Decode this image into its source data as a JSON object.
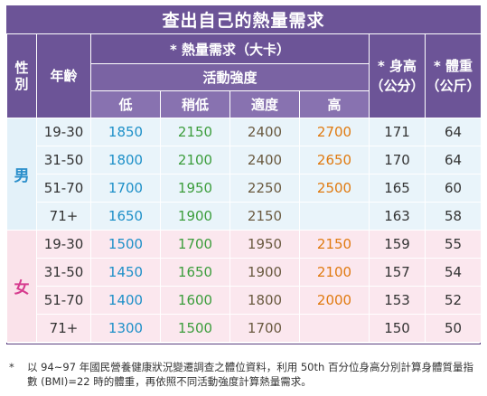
{
  "title": "查出自己的熱量需求",
  "headers": {
    "sex": "性別",
    "age": "年齡",
    "calorie": "* 熱量需求（大卡）",
    "activity": "活動強度",
    "height": "* 身高（公分）",
    "weight": "* 體重（公斤）",
    "levels": [
      "低",
      "稍低",
      "適度",
      "高"
    ]
  },
  "groups": [
    {
      "sex": "男",
      "rows": [
        {
          "age": "19-30",
          "low": "1850",
          "slightly_low": "2150",
          "moderate": "2400",
          "high": "2700",
          "height": "171",
          "weight": "64"
        },
        {
          "age": "31-50",
          "low": "1800",
          "slightly_low": "2100",
          "moderate": "2400",
          "high": "2650",
          "height": "170",
          "weight": "64"
        },
        {
          "age": "51-70",
          "low": "1700",
          "slightly_low": "1950",
          "moderate": "2250",
          "high": "2500",
          "height": "165",
          "weight": "60"
        },
        {
          "age": "71+",
          "low": "1650",
          "slightly_low": "1900",
          "moderate": "2150",
          "high": "",
          "height": "163",
          "weight": "58"
        }
      ]
    },
    {
      "sex": "女",
      "rows": [
        {
          "age": "19-30",
          "low": "1500",
          "slightly_low": "1700",
          "moderate": "1950",
          "high": "2150",
          "height": "159",
          "weight": "55"
        },
        {
          "age": "31-50",
          "low": "1450",
          "slightly_low": "1650",
          "moderate": "1900",
          "high": "2100",
          "height": "157",
          "weight": "54"
        },
        {
          "age": "51-70",
          "low": "1400",
          "slightly_low": "1600",
          "moderate": "1800",
          "high": "2000",
          "height": "153",
          "weight": "52"
        },
        {
          "age": "71+",
          "low": "1300",
          "slightly_low": "1500",
          "moderate": "1700",
          "high": "",
          "height": "150",
          "weight": "50"
        }
      ]
    }
  ],
  "footnote": {
    "marker": "*",
    "text": "以 94~97 年國民營養健康狀況變遷調查之體位資料，利用 50th 百分位身高分別計算身體質量指數 (BMI)=22 時的體重，再依照不同活動強度計算熱量需求。"
  },
  "colors": {
    "header_bg": "#6c5497",
    "male_bg": "#e9f4fa",
    "female_bg": "#fbe7ee",
    "low": "#1e90c8",
    "slightly_low": "#3c9d3c",
    "moderate": "#6a5a40",
    "high": "#e07a10",
    "male_label": "#2b8fcb",
    "female_label": "#d63b8e"
  }
}
